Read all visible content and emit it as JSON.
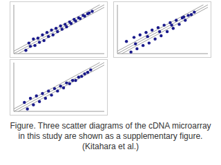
{
  "chart_data": [
    {
      "type": "scatter",
      "color": "#1a1a8c",
      "xlim": [
        0,
        6
      ],
      "ylim": [
        0,
        6
      ],
      "tick_labels": false,
      "reference_lines": [
        -0.3,
        0,
        0.3
      ],
      "x": [
        0.8,
        1.0,
        1.1,
        1.3,
        1.4,
        1.6,
        1.7,
        1.9,
        2.0,
        2.2,
        2.3,
        2.5,
        2.6,
        2.8,
        2.9,
        3.1,
        3.2,
        3.4,
        3.5,
        3.7,
        3.8,
        4.0,
        4.1,
        4.3,
        4.4,
        4.6,
        4.7,
        4.9,
        5.0,
        5.2
      ],
      "values": [
        0.4,
        1.3,
        0.9,
        1.8,
        1.0,
        1.9,
        1.4,
        2.3,
        1.6,
        2.6,
        2.1,
        2.9,
        2.3,
        3.1,
        2.7,
        3.4,
        3.0,
        3.6,
        3.3,
        3.9,
        3.7,
        4.2,
        4.0,
        4.4,
        4.3,
        4.7,
        4.6,
        4.9,
        5.0,
        5.2
      ]
    },
    {
      "type": "scatter",
      "color": "#1a1a8c",
      "xlim": [
        0,
        6
      ],
      "ylim": [
        0,
        6
      ],
      "tick_labels": false,
      "reference_lines": [
        -0.3,
        0,
        0.3
      ],
      "x": [
        0.6,
        0.9,
        1.1,
        1.3,
        1.5,
        1.7,
        1.9,
        2.1,
        2.3,
        2.5,
        2.7,
        2.9,
        3.1,
        3.3,
        3.5,
        3.7,
        3.9,
        4.1,
        4.3,
        4.5,
        4.7,
        4.9,
        5.1,
        1.2,
        2.0,
        2.8,
        3.6,
        4.4
      ],
      "values": [
        1.5,
        0.2,
        2.0,
        0.6,
        2.3,
        1.0,
        2.6,
        1.3,
        2.9,
        1.8,
        3.2,
        2.2,
        3.5,
        2.7,
        3.8,
        3.1,
        4.1,
        3.6,
        4.4,
        4.1,
        4.7,
        4.8,
        5.1,
        1.2,
        2.1,
        2.7,
        3.5,
        4.5
      ]
    },
    {
      "type": "scatter",
      "color": "#1a1a8c",
      "xlim": [
        0,
        6
      ],
      "ylim": [
        0,
        6
      ],
      "tick_labels": false,
      "reference_lines": [
        -0.3,
        0,
        0.3
      ],
      "x": [
        0.7,
        0.9,
        1.1,
        1.3,
        1.5,
        1.7,
        1.9,
        2.1,
        2.3,
        2.5,
        2.7,
        2.9,
        3.1,
        3.3,
        3.5,
        3.7,
        3.9,
        4.1,
        4.3,
        4.5,
        4.7,
        4.9,
        5.1
      ],
      "values": [
        1.1,
        0.3,
        1.6,
        0.8,
        1.9,
        1.2,
        2.2,
        1.6,
        2.5,
        2.0,
        2.8,
        2.5,
        3.1,
        2.9,
        3.5,
        3.4,
        3.8,
        3.8,
        4.2,
        4.3,
        4.6,
        4.8,
        5.1
      ]
    }
  ],
  "caption": "Figure. Three scatter diagrams of  the cDNA microarray in this study are shown as a supplementary figure. (Kitahara et al.)"
}
